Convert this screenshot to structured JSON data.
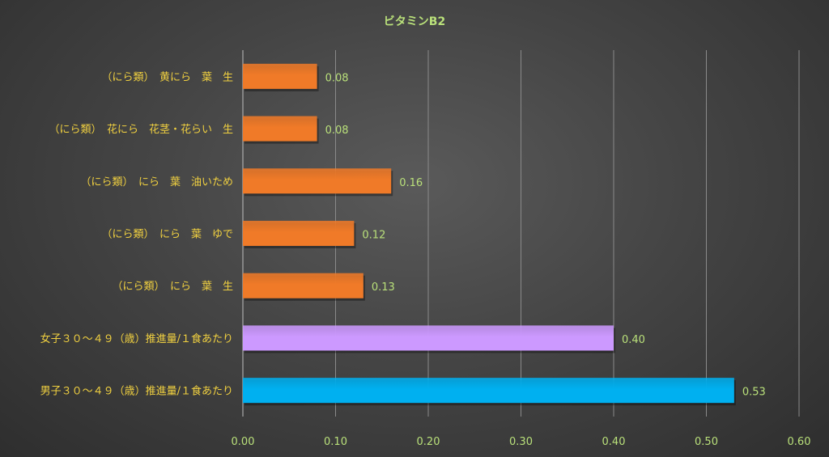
{
  "chart_data": {
    "type": "bar",
    "orientation": "horizontal",
    "title": "ビタミンB2",
    "xlabel": "",
    "ylabel": "",
    "categories": [
      "（にら類）　黄にら　葉　生",
      "（にら類）　花にら　花茎・花らい　生",
      "（にら類）　にら　葉　油いため",
      "（にら類）　にら　葉　ゆで",
      "（にら類）　にら　葉　生",
      "女子３０～４９（歳）推進量/１食あたり",
      "男子３０～４９（歳）推進量/１食あたり"
    ],
    "values": [
      0.08,
      0.08,
      0.16,
      0.12,
      0.13,
      0.4,
      0.53
    ],
    "value_labels": [
      "0.08",
      "0.08",
      "0.16",
      "0.12",
      "0.13",
      "0.40",
      "0.53"
    ],
    "bar_colors": [
      "#f07a28",
      "#f07a28",
      "#f07a28",
      "#f07a28",
      "#f07a28",
      "#cc99ff",
      "#00b0f0"
    ],
    "xlim": [
      0,
      0.6
    ],
    "x_ticks": [
      0,
      0.1,
      0.2,
      0.3,
      0.4,
      0.5,
      0.6
    ],
    "x_tick_labels": [
      "0.00",
      "0.10",
      "0.20",
      "0.30",
      "0.40",
      "0.50",
      "0.60"
    ],
    "grid": true,
    "legend": "none"
  }
}
